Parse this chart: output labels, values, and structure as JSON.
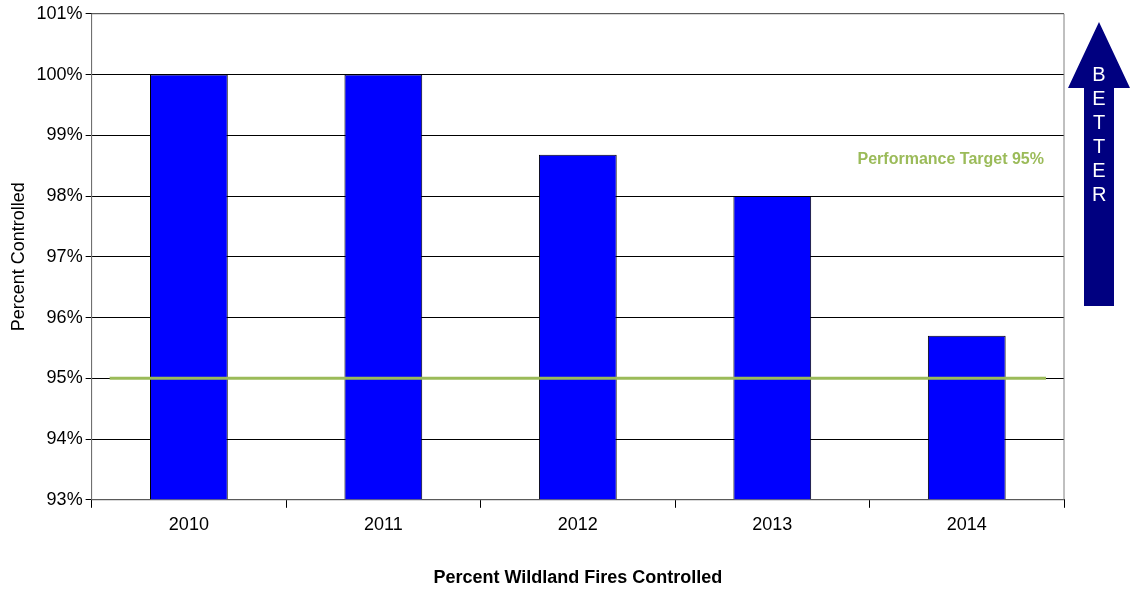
{
  "chart_data": {
    "type": "bar",
    "xlabel": "Percent Wildland Fires Controlled",
    "ylabel": "Percent Controlled",
    "categories": [
      "2010",
      "2011",
      "2012",
      "2013",
      "2014"
    ],
    "values": [
      100,
      100,
      98.68,
      98,
      95.7
    ],
    "color": "#0000ff",
    "ylim": [
      93,
      101
    ],
    "yticks": [
      {
        "value": 93,
        "label": "93%"
      },
      {
        "value": 94,
        "label": "94%"
      },
      {
        "value": 95,
        "label": "95%"
      },
      {
        "value": 96,
        "label": "96%"
      },
      {
        "value": 97,
        "label": "97%"
      },
      {
        "value": 98,
        "label": "98%"
      },
      {
        "value": 99,
        "label": "99%"
      },
      {
        "value": 100,
        "label": "100%"
      },
      {
        "value": 101,
        "label": "101%"
      }
    ],
    "grid": "y",
    "legend": false,
    "ref_lines": [
      {
        "axis": "y",
        "value": 95,
        "label": "Performance Target 95%",
        "color": "#9bbb59"
      }
    ],
    "annotations": [
      "BETTER"
    ]
  }
}
